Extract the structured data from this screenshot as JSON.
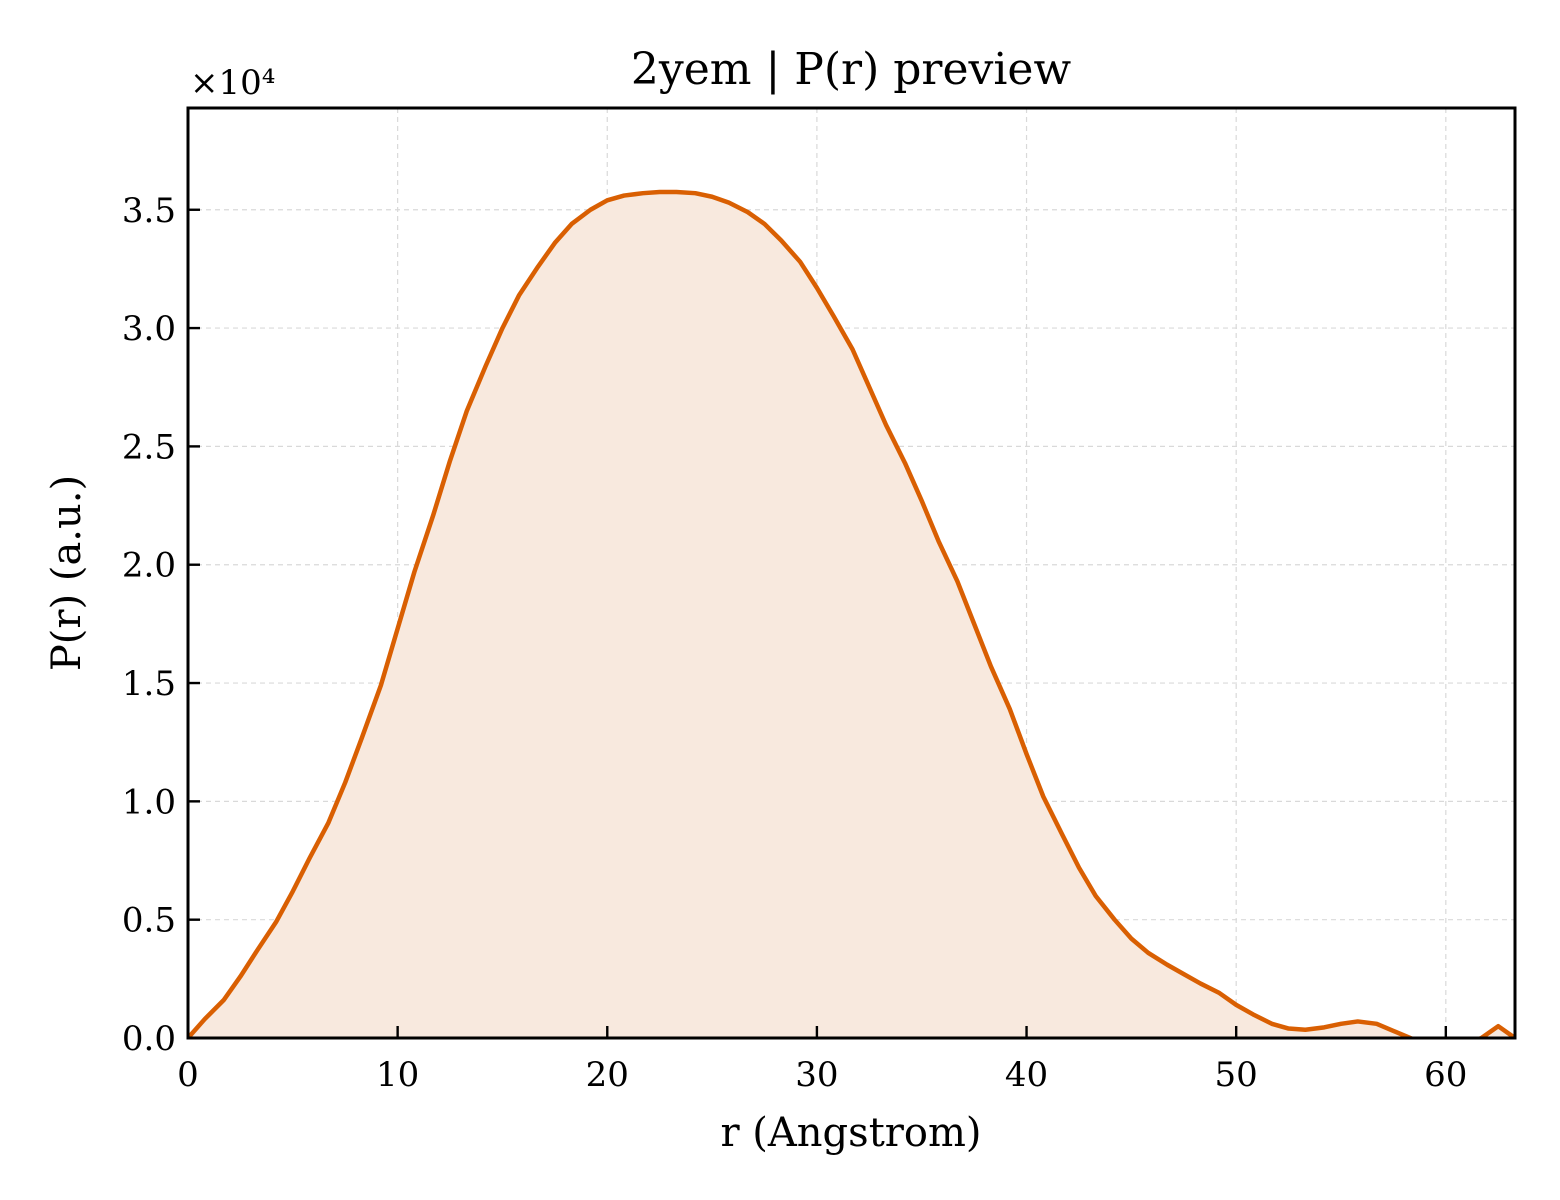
{
  "chart_data": {
    "type": "area",
    "title": "2yem | P(r) preview",
    "xlabel": "r (Angstrom)",
    "ylabel": "P(r) (a.u.)",
    "y_multiplier_label": "×10⁴",
    "xlim": [
      0,
      63.3
    ],
    "ylim": [
      0,
      3.93
    ],
    "xticks": [
      0,
      10,
      20,
      30,
      40,
      50,
      60
    ],
    "yticks": [
      0.0,
      0.5,
      1.0,
      1.5,
      2.0,
      2.5,
      3.0,
      3.5
    ],
    "xtick_labels": [
      "0",
      "10",
      "20",
      "30",
      "40",
      "50",
      "60"
    ],
    "ytick_labels": [
      "0.0",
      "0.5",
      "1.0",
      "1.5",
      "2.0",
      "2.5",
      "3.0",
      "3.5"
    ],
    "grid": true,
    "line_color": "#d95f02",
    "fill_color": "#f8e9de",
    "x": [
      0,
      0.8,
      1.7,
      2.5,
      3.3,
      4.2,
      5.0,
      5.8,
      6.7,
      7.5,
      8.3,
      9.2,
      10.0,
      10.8,
      11.7,
      12.5,
      13.3,
      14.2,
      15.0,
      15.8,
      16.7,
      17.5,
      18.3,
      19.2,
      20.0,
      20.8,
      21.7,
      22.5,
      23.3,
      24.2,
      25.0,
      25.8,
      26.7,
      27.5,
      28.3,
      29.2,
      30.0,
      30.8,
      31.7,
      32.5,
      33.3,
      34.2,
      35.0,
      35.8,
      36.7,
      37.5,
      38.3,
      39.2,
      40.0,
      40.8,
      41.7,
      42.5,
      43.3,
      44.2,
      45.0,
      45.8,
      46.7,
      47.5,
      48.3,
      49.2,
      50.0,
      50.8,
      51.7,
      52.5,
      53.3,
      54.2,
      55.0,
      55.8,
      56.7,
      57.5,
      58.3,
      59.2,
      60.0,
      60.8,
      61.7,
      62.5,
      63.3
    ],
    "values": [
      0.0,
      0.08,
      0.16,
      0.26,
      0.37,
      0.49,
      0.62,
      0.76,
      0.91,
      1.08,
      1.27,
      1.49,
      1.73,
      1.97,
      2.21,
      2.44,
      2.65,
      2.84,
      3.0,
      3.14,
      3.26,
      3.36,
      3.44,
      3.5,
      3.54,
      3.56,
      3.57,
      3.575,
      3.575,
      3.57,
      3.555,
      3.53,
      3.49,
      3.44,
      3.37,
      3.28,
      3.17,
      3.05,
      2.91,
      2.75,
      2.59,
      2.43,
      2.27,
      2.1,
      1.93,
      1.75,
      1.57,
      1.39,
      1.2,
      1.02,
      0.86,
      0.72,
      0.6,
      0.5,
      0.42,
      0.36,
      0.31,
      0.27,
      0.23,
      0.19,
      0.14,
      0.1,
      0.06,
      0.04,
      0.035,
      0.045,
      0.06,
      0.07,
      0.06,
      0.03,
      0.0,
      -0.03,
      -0.05,
      -0.03,
      0.0,
      0.05,
      0.0
    ]
  }
}
